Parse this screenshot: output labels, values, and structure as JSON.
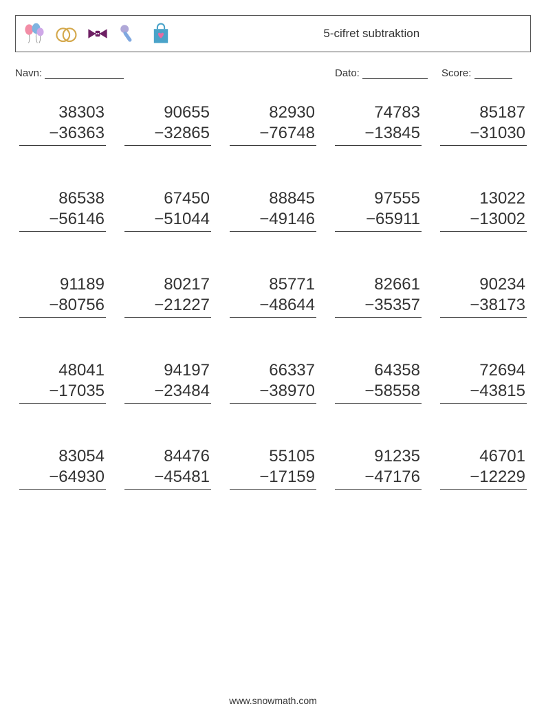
{
  "worksheet": {
    "title": "5-cifret subtraktion",
    "labels": {
      "name": "Navn:",
      "date": "Dato:",
      "score": "Score:"
    },
    "icons": [
      "balloons-icon",
      "rings-icon",
      "bowtie-icon",
      "microphone-icon",
      "shopping-bag-icon"
    ],
    "icon_colors": {
      "balloons": {
        "a": "#f28da6",
        "b": "#7fb3e0",
        "c": "#cfa8e8"
      },
      "rings": "#d4a84b",
      "bowtie": "#6d1f63",
      "microphone": {
        "head": "#b0a8d8",
        "body": "#7fa8e0"
      },
      "bag": {
        "bag": "#4aa3c9",
        "heart": "#e86aa0"
      }
    },
    "footer": "www.snowmath.com",
    "operator": "−",
    "style": {
      "background_color": "#ffffff",
      "text_color": "#333333",
      "border_color": "#555555",
      "problem_fontsize": 24,
      "title_fontsize": 17,
      "label_fontsize": 15,
      "footer_fontsize": 14,
      "columns": 5,
      "rows": 5,
      "row_gap": 62,
      "problem_width": 126
    },
    "problems": [
      [
        {
          "a": "38303",
          "b": "36363"
        },
        {
          "a": "90655",
          "b": "32865"
        },
        {
          "a": "82930",
          "b": "76748"
        },
        {
          "a": "74783",
          "b": "13845"
        },
        {
          "a": "85187",
          "b": "31030"
        }
      ],
      [
        {
          "a": "86538",
          "b": "56146"
        },
        {
          "a": "67450",
          "b": "51044"
        },
        {
          "a": "88845",
          "b": "49146"
        },
        {
          "a": "97555",
          "b": "65911"
        },
        {
          "a": "13022",
          "b": "13002"
        }
      ],
      [
        {
          "a": "91189",
          "b": "80756"
        },
        {
          "a": "80217",
          "b": "21227"
        },
        {
          "a": "85771",
          "b": "48644"
        },
        {
          "a": "82661",
          "b": "35357"
        },
        {
          "a": "90234",
          "b": "38173"
        }
      ],
      [
        {
          "a": "48041",
          "b": "17035"
        },
        {
          "a": "94197",
          "b": "23484"
        },
        {
          "a": "66337",
          "b": "38970"
        },
        {
          "a": "64358",
          "b": "58558"
        },
        {
          "a": "72694",
          "b": "43815"
        }
      ],
      [
        {
          "a": "83054",
          "b": "64930"
        },
        {
          "a": "84476",
          "b": "45481"
        },
        {
          "a": "55105",
          "b": "17159"
        },
        {
          "a": "91235",
          "b": "47176"
        },
        {
          "a": "46701",
          "b": "12229"
        }
      ]
    ]
  }
}
